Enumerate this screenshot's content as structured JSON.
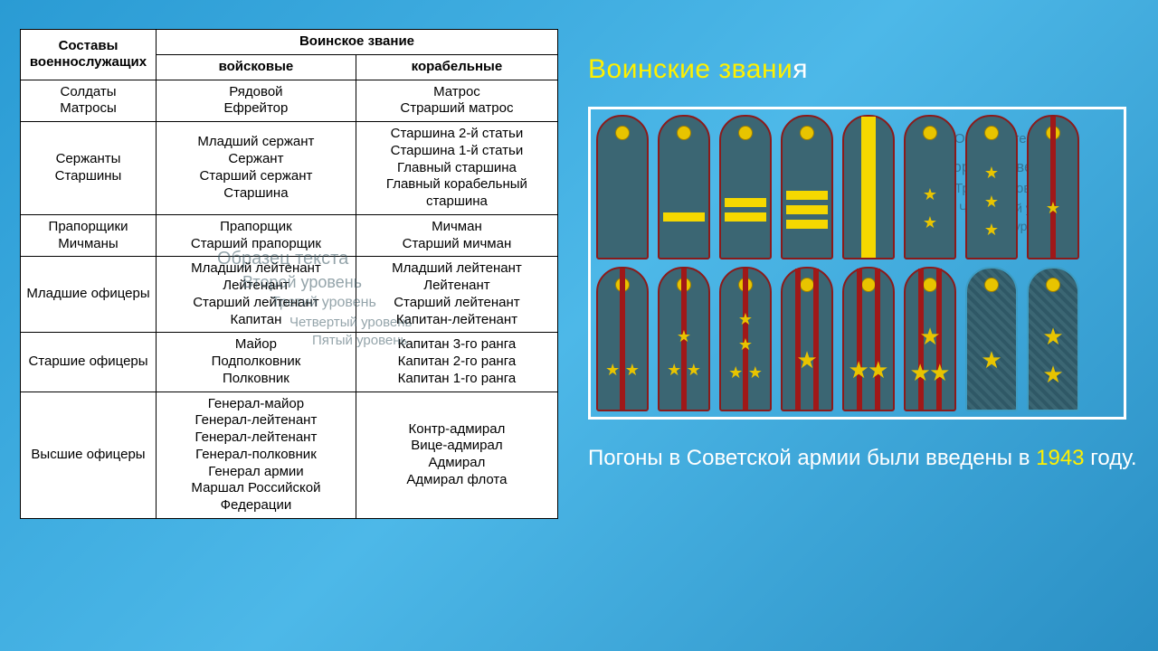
{
  "title_part1": "Воинские звани",
  "title_part2": "я",
  "table": {
    "header": {
      "col1": "Составы военнослужащих",
      "col2": "Воинское звание",
      "sub1": "войсковые",
      "sub2": "корабельные"
    },
    "rows": [
      {
        "cat": "Солдаты\nМатросы",
        "a": "Рядовой\nЕфрейтор",
        "b": "Матрос\nСтрарший матрос"
      },
      {
        "cat": "Сержанты\nСтаршины",
        "a": "Младший сержант\nСержант\nСтарший сержант\nСтаршина",
        "b": "Старшина 2-й статьи\nСтаршина 1-й статьи\nГлавный старшина\nГлавный корабельный старшина"
      },
      {
        "cat": "Прапорщики\nМичманы",
        "a": "Прапорщик\nСтарший прапорщик",
        "b": "Мичман\nСтарший мичман"
      },
      {
        "cat": "Младшие офицеры",
        "a": "Младший лейтенант\nЛейтенант\nСтарший лейтенант\nКапитан",
        "b": "Младший лейтенант\nЛейтенант\nСтарший лейтенант\nКапитан-лейтенант"
      },
      {
        "cat": "Старшие офицеры",
        "a": "Майор\nПодполковник\nПолковник",
        "b": "Капитан 3-го ранга\nКапитан 2-го ранга\nКапитан 1-го ранга"
      },
      {
        "cat": "Высшие офицеры",
        "a": "Генерал-майор\nГенерал-лейтенант\nГенерал-лейтенант\nГенерал-полковник\nГенерал армии\nМаршал Российской Федерации",
        "b": "Контр-адмирал\nВице-адмирал\nАдмирал\nАдмирал флота"
      }
    ]
  },
  "ghost_text": {
    "g1": "Образец текста",
    "g2": "Второй уровень",
    "g3": "Третий уровень",
    "g4": "Четвертый уровень",
    "g5": "Пятый уровень",
    "r1": "Образец текста",
    "r2": "Второй уровень",
    "r3": "Третий уровень",
    "r4": "Четвертый уровень",
    "r5": "Пятый уровень"
  },
  "caption_pre": "Погоны в Советской армии были введены в ",
  "caption_year": "1943",
  "caption_post": " году.",
  "colors": {
    "bg_grad_from": "#2a9bd4",
    "bg_grad_to": "#2a8fc4",
    "accent_yellow": "#fff000",
    "epaulette_base": "#3b6673",
    "epaulette_border": "#8b1a1a",
    "stripe_gold": "#f5d800",
    "star_gold": "#e8c400"
  },
  "epaulettes": {
    "row1": [
      {
        "type": "plain"
      },
      {
        "type": "stripes",
        "count": 1
      },
      {
        "type": "stripes",
        "count": 2
      },
      {
        "type": "stripes",
        "count": 3
      },
      {
        "type": "wide"
      },
      {
        "type": "stars_small",
        "layout": "v2"
      },
      {
        "type": "stars_small",
        "layout": "v3"
      },
      {
        "type": "1line",
        "layout": "s1"
      }
    ],
    "row2": [
      {
        "type": "1line",
        "layout": "s2"
      },
      {
        "type": "1line",
        "layout": "s3"
      },
      {
        "type": "1line",
        "layout": "s4"
      },
      {
        "type": "2line",
        "layout": "b1"
      },
      {
        "type": "2line",
        "layout": "b2"
      },
      {
        "type": "2line",
        "layout": "b3"
      },
      {
        "type": "textured",
        "layout": "g1"
      },
      {
        "type": "textured",
        "layout": "g2"
      }
    ]
  }
}
